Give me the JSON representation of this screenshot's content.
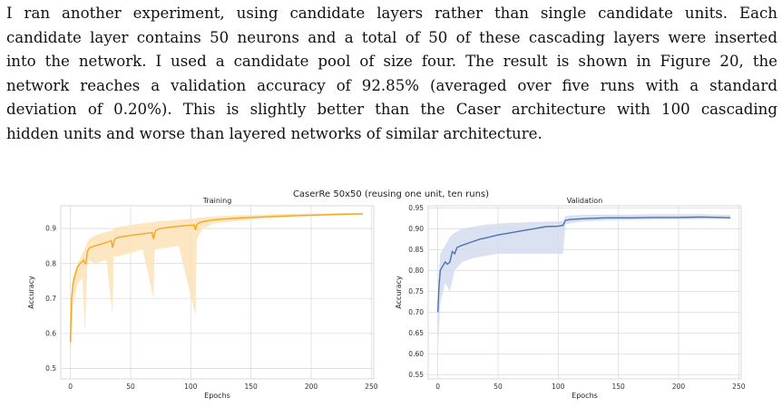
{
  "paragraph": {
    "lines": [
      "I ran another experiment, using candidate layers rather than single candidate units. Each",
      "candidate layer contains 50 neurons and a total of 50 of these cascading layers were inserted",
      "into the network. I used a candidate pool of size four. The result is shown in Figure 20, the",
      "network reaches a validation accuracy of 92.85% (averaged over five runs with a standard",
      "deviation of 0.20%). This is slightly better than the Caser architecture with 100 cascading",
      "hidden units and worse than layered networks of similar architecture."
    ]
  },
  "figure": {
    "suptitle": "CaserRe 50x50 (reusing one unit, ten runs)",
    "colors": {
      "training": "#f5a623",
      "training_band": "#fde3b8",
      "validation": "#4c72b0",
      "validation_band": "#d3dcef",
      "grid": "#dcdcdc",
      "plot_bg": "#ffffff"
    }
  },
  "chart_data": [
    {
      "type": "line",
      "title": "Training",
      "xlabel": "Epochs",
      "ylabel": "Accuracy",
      "xlim": [
        -8,
        252
      ],
      "ylim": [
        0.47,
        0.965
      ],
      "xticks": [
        0,
        50,
        100,
        150,
        200,
        250
      ],
      "yticks": [
        0.5,
        0.6,
        0.7,
        0.8,
        0.9
      ],
      "ytick_labels": [
        "0.5",
        "0.6",
        "0.7",
        "0.8",
        "0.9"
      ],
      "grid": true,
      "series": [
        {
          "x": [
            0,
            1,
            2,
            4,
            6,
            8,
            10,
            11,
            12,
            13,
            14,
            16,
            20,
            25,
            30,
            34,
            35,
            36,
            37,
            40,
            50,
            60,
            68,
            69,
            70,
            71,
            75,
            85,
            95,
            103,
            104,
            105,
            106,
            110,
            120,
            140,
            160,
            180,
            200,
            220,
            243
          ],
          "y": [
            0.575,
            0.7,
            0.74,
            0.77,
            0.79,
            0.8,
            0.805,
            0.81,
            0.8,
            0.8,
            0.835,
            0.845,
            0.85,
            0.855,
            0.86,
            0.865,
            0.845,
            0.86,
            0.87,
            0.875,
            0.88,
            0.885,
            0.888,
            0.87,
            0.885,
            0.895,
            0.9,
            0.905,
            0.908,
            0.91,
            0.895,
            0.91,
            0.915,
            0.92,
            0.925,
            0.93,
            0.933,
            0.936,
            0.938,
            0.94,
            0.942
          ]
        }
      ],
      "band": {
        "x": [
          0,
          2,
          6,
          10,
          12,
          14,
          16,
          20,
          30,
          35,
          36,
          40,
          50,
          60,
          69,
          70,
          80,
          90,
          104,
          105,
          110,
          120,
          140,
          160,
          180,
          200,
          220,
          243
        ],
        "lower": [
          0.5,
          0.68,
          0.74,
          0.76,
          0.6,
          0.79,
          0.81,
          0.8,
          0.81,
          0.65,
          0.82,
          0.82,
          0.83,
          0.84,
          0.7,
          0.84,
          0.845,
          0.85,
          0.65,
          0.87,
          0.9,
          0.915,
          0.922,
          0.928,
          0.932,
          0.935,
          0.937,
          0.94
        ],
        "upper": [
          0.66,
          0.76,
          0.8,
          0.83,
          0.84,
          0.86,
          0.87,
          0.88,
          0.89,
          0.895,
          0.9,
          0.905,
          0.91,
          0.915,
          0.918,
          0.92,
          0.922,
          0.925,
          0.928,
          0.93,
          0.932,
          0.935,
          0.938,
          0.94,
          0.942,
          0.943,
          0.944,
          0.945
        ]
      }
    },
    {
      "type": "line",
      "title": "Validation",
      "xlabel": "Epochs",
      "ylabel": "Accuracy",
      "xlim": [
        -8,
        252
      ],
      "ylim": [
        0.54,
        0.955
      ],
      "xticks": [
        0,
        50,
        100,
        150,
        200,
        250
      ],
      "yticks": [
        0.55,
        0.6,
        0.65,
        0.7,
        0.75,
        0.8,
        0.85,
        0.9,
        0.95
      ],
      "ytick_labels": [
        "0.55",
        "0.60",
        "0.65",
        "0.70",
        "0.75",
        "0.80",
        "0.85",
        "0.90",
        "0.95"
      ],
      "grid": true,
      "series": [
        {
          "x": [
            0,
            1,
            2,
            4,
            6,
            8,
            10,
            12,
            14,
            16,
            20,
            25,
            30,
            35,
            40,
            50,
            60,
            70,
            80,
            90,
            100,
            104,
            106,
            110,
            120,
            130,
            140,
            160,
            180,
            200,
            220,
            243
          ],
          "y": [
            0.7,
            0.76,
            0.8,
            0.81,
            0.82,
            0.815,
            0.82,
            0.845,
            0.84,
            0.855,
            0.86,
            0.865,
            0.87,
            0.875,
            0.878,
            0.885,
            0.89,
            0.895,
            0.9,
            0.905,
            0.906,
            0.908,
            0.92,
            0.922,
            0.924,
            0.925,
            0.926,
            0.926,
            0.927,
            0.927,
            0.928,
            0.926
          ]
        }
      ],
      "band": {
        "x": [
          0,
          2,
          6,
          10,
          14,
          20,
          30,
          40,
          50,
          60,
          70,
          80,
          90,
          104,
          106,
          110,
          120,
          140,
          160,
          180,
          200,
          220,
          243
        ],
        "lower": [
          0.6,
          0.72,
          0.77,
          0.75,
          0.8,
          0.82,
          0.83,
          0.835,
          0.84,
          0.84,
          0.84,
          0.84,
          0.84,
          0.84,
          0.91,
          0.913,
          0.917,
          0.92,
          0.921,
          0.922,
          0.923,
          0.923,
          0.924
        ],
        "upper": [
          0.76,
          0.84,
          0.86,
          0.88,
          0.89,
          0.9,
          0.905,
          0.91,
          0.912,
          0.914,
          0.915,
          0.916,
          0.917,
          0.918,
          0.93,
          0.932,
          0.933,
          0.934,
          0.934,
          0.935,
          0.935,
          0.935,
          0.933
        ]
      }
    }
  ]
}
